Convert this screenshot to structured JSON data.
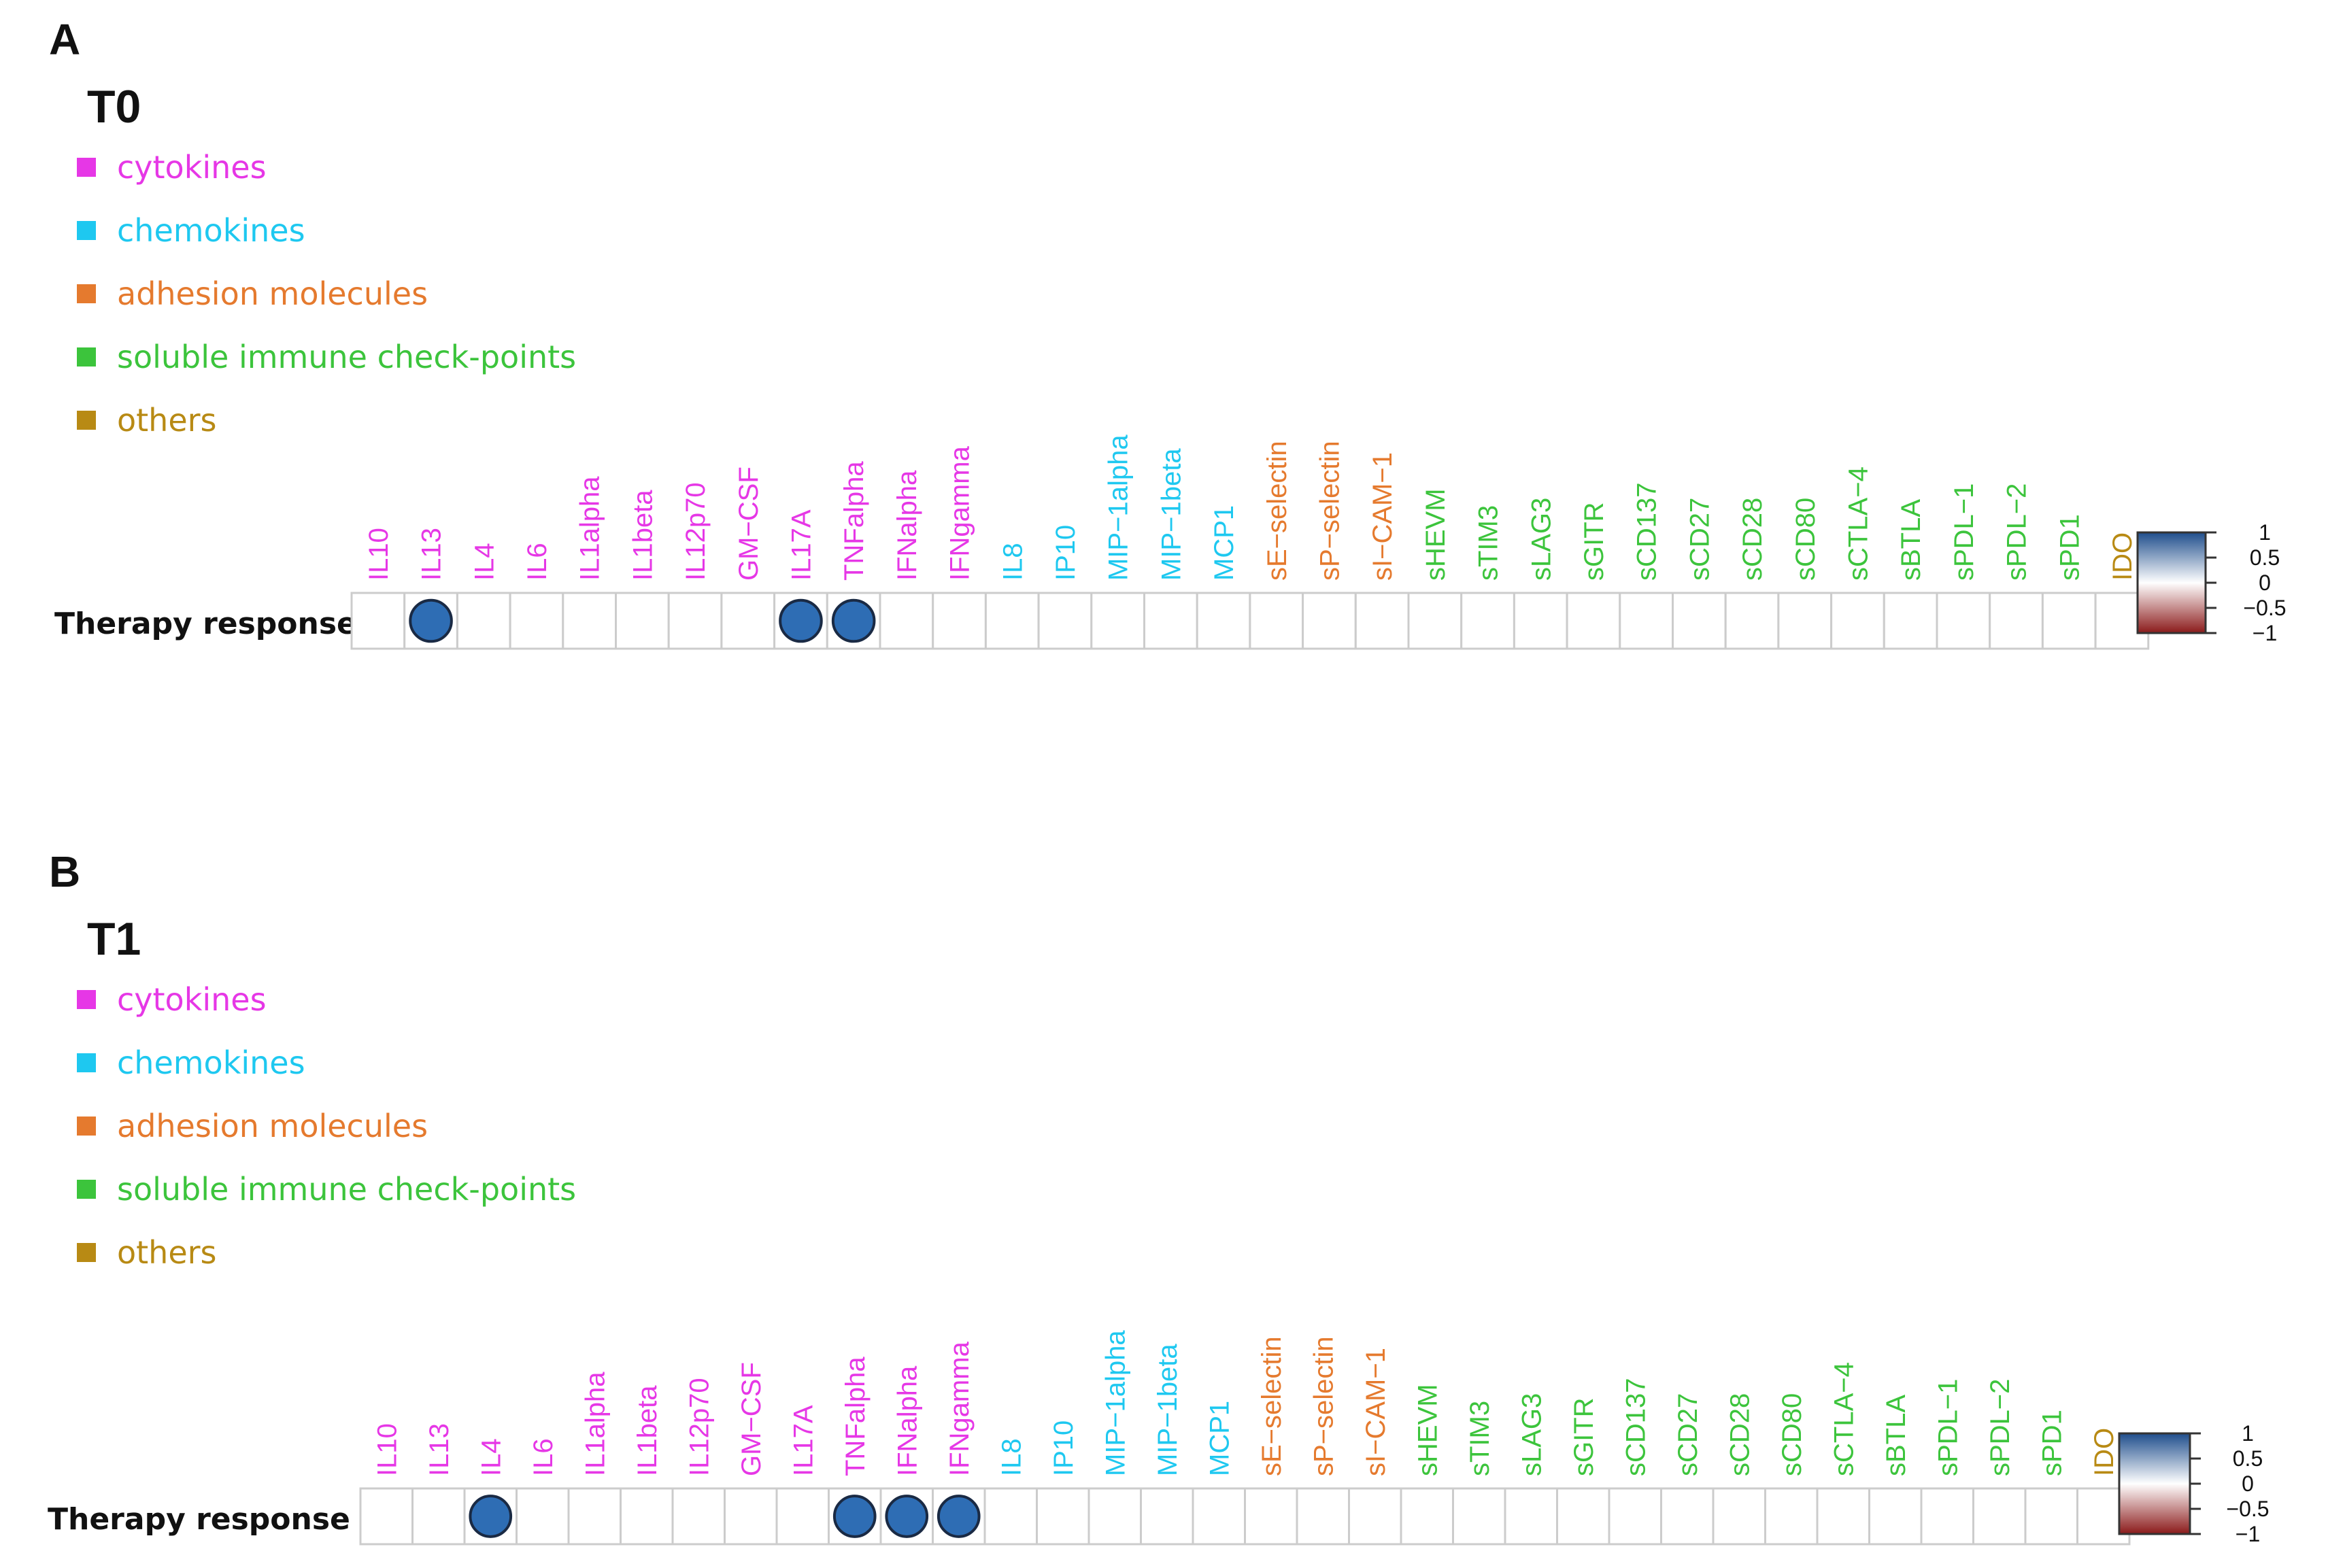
{
  "legend": [
    {
      "label": "cytokines",
      "color": "#e637e6"
    },
    {
      "label": "chemokines",
      "color": "#1ec8f0"
    },
    {
      "label": "adhesion molecules",
      "color": "#e57a2e"
    },
    {
      "label": "soluble immune check-points",
      "color": "#3cc43c"
    },
    {
      "label": "others",
      "color": "#b88a14"
    }
  ],
  "variables": [
    {
      "name": "IL10",
      "group": 0
    },
    {
      "name": "IL13",
      "group": 0
    },
    {
      "name": "IL4",
      "group": 0
    },
    {
      "name": "IL6",
      "group": 0
    },
    {
      "name": "IL1alpha",
      "group": 0
    },
    {
      "name": "IL1beta",
      "group": 0
    },
    {
      "name": "IL12p70",
      "group": 0
    },
    {
      "name": "GM−CSF",
      "group": 0
    },
    {
      "name": "IL17A",
      "group": 0
    },
    {
      "name": "TNFalpha",
      "group": 0
    },
    {
      "name": "IFNalpha",
      "group": 0
    },
    {
      "name": "IFNgamma",
      "group": 0
    },
    {
      "name": "IL8",
      "group": 1
    },
    {
      "name": "IP10",
      "group": 1
    },
    {
      "name": "MIP−1alpha",
      "group": 1
    },
    {
      "name": "MIP−1beta",
      "group": 1
    },
    {
      "name": "MCP1",
      "group": 1
    },
    {
      "name": "sE−selectin",
      "group": 2
    },
    {
      "name": "sP−selectin",
      "group": 2
    },
    {
      "name": "sI−CAM−1",
      "group": 2
    },
    {
      "name": "sHEVM",
      "group": 3
    },
    {
      "name": "sTIM3",
      "group": 3
    },
    {
      "name": "sLAG3",
      "group": 3
    },
    {
      "name": "sGITR",
      "group": 3
    },
    {
      "name": "sCD137",
      "group": 3
    },
    {
      "name": "sCD27",
      "group": 3
    },
    {
      "name": "sCD28",
      "group": 3
    },
    {
      "name": "sCD80",
      "group": 3
    },
    {
      "name": "sCTLA−4",
      "group": 3
    },
    {
      "name": "sBTLA",
      "group": 3
    },
    {
      "name": "sPDL−1",
      "group": 3
    },
    {
      "name": "sPDL−2",
      "group": 3
    },
    {
      "name": "sPD1",
      "group": 3
    },
    {
      "name": "IDO",
      "group": 4
    }
  ],
  "panels": [
    {
      "letter": "A",
      "time": "T0",
      "row_label": "Therapy response"
    },
    {
      "letter": "B",
      "time": "T1",
      "row_label": "Therapy response"
    }
  ],
  "colorbar": {
    "ticks": [
      {
        "value": 1,
        "label": "1"
      },
      {
        "value": 0.5,
        "label": "0.5"
      },
      {
        "value": 0,
        "label": "0"
      },
      {
        "value": -0.5,
        "label": "−0.5"
      },
      {
        "value": -1,
        "label": "−1"
      }
    ],
    "colors": [
      "#1f4e8c",
      "#ffffff",
      "#8b1a1a"
    ]
  },
  "chart_data": [
    {
      "type": "heatmap",
      "title": "T0",
      "row": "Therapy response",
      "columns": [
        "IL10",
        "IL13",
        "IL4",
        "IL6",
        "IL1alpha",
        "IL1beta",
        "IL12p70",
        "GM−CSF",
        "IL17A",
        "TNFalpha",
        "IFNalpha",
        "IFNgamma",
        "IL8",
        "IP10",
        "MIP−1alpha",
        "MIP−1beta",
        "MCP1",
        "sE−selectin",
        "sP−selectin",
        "sI−CAM−1",
        "sHEVM",
        "sTIM3",
        "sLAG3",
        "sGITR",
        "sCD137",
        "sCD27",
        "sCD28",
        "sCD80",
        "sCTLA−4",
        "sBTLA",
        "sPDL−1",
        "sPDL−2",
        "sPD1",
        "IDO"
      ],
      "values": [
        null,
        0.8,
        null,
        null,
        null,
        null,
        null,
        null,
        0.8,
        0.8,
        null,
        null,
        null,
        null,
        null,
        null,
        null,
        null,
        null,
        null,
        null,
        null,
        null,
        null,
        null,
        null,
        null,
        null,
        null,
        null,
        null,
        null,
        null,
        null
      ],
      "colorbar_range": [
        -1,
        1
      ]
    },
    {
      "type": "heatmap",
      "title": "T1",
      "row": "Therapy response",
      "columns": [
        "IL10",
        "IL13",
        "IL4",
        "IL6",
        "IL1alpha",
        "IL1beta",
        "IL12p70",
        "GM−CSF",
        "IL17A",
        "TNFalpha",
        "IFNalpha",
        "IFNgamma",
        "IL8",
        "IP10",
        "MIP−1alpha",
        "MIP−1beta",
        "MCP1",
        "sE−selectin",
        "sP−selectin",
        "sI−CAM−1",
        "sHEVM",
        "sTIM3",
        "sLAG3",
        "sGITR",
        "sCD137",
        "sCD27",
        "sCD28",
        "sCD80",
        "sCTLA−4",
        "sBTLA",
        "sPDL−1",
        "sPDL−2",
        "sPD1",
        "IDO"
      ],
      "values": [
        null,
        null,
        0.8,
        null,
        null,
        null,
        null,
        null,
        null,
        0.8,
        0.8,
        0.8,
        null,
        null,
        null,
        null,
        null,
        null,
        null,
        null,
        null,
        null,
        null,
        null,
        null,
        null,
        null,
        null,
        null,
        null,
        null,
        null,
        null,
        null
      ],
      "colorbar_range": [
        -1,
        1
      ]
    }
  ]
}
